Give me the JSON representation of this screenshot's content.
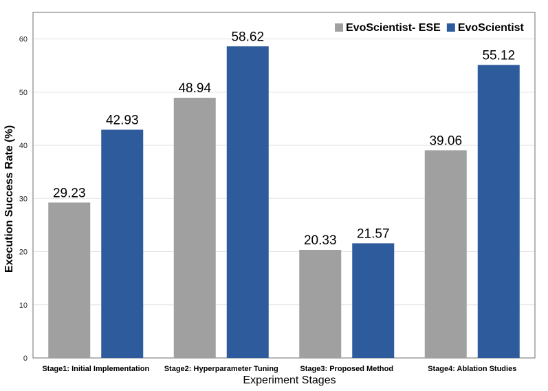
{
  "chart_data": {
    "type": "bar",
    "xlabel": "Experiment Stages",
    "ylabel": "Execution Success Rate (%)",
    "ylim": [
      0,
      65
    ],
    "yticks": [
      0,
      10,
      20,
      30,
      40,
      50,
      60
    ],
    "grid": true,
    "legend_position": "top-right",
    "categories": [
      "Stage1: Initial Implementation",
      "Stage2: Hyperparameter Tuning",
      "Stage3: Proposed Method",
      "Stage4: Ablation Studies"
    ],
    "series": [
      {
        "name": "EvoScientist- ESE",
        "color": "#a0a0a0",
        "values": [
          29.23,
          48.94,
          20.33,
          39.06
        ],
        "labels": [
          "29.23",
          "48.94",
          "20.33",
          "39.06"
        ]
      },
      {
        "name": "EvoScientist",
        "color": "#2e5b9c",
        "values": [
          42.93,
          58.62,
          21.57,
          55.12
        ],
        "labels": [
          "42.93",
          "58.62",
          "21.57",
          "55.12"
        ]
      }
    ]
  }
}
